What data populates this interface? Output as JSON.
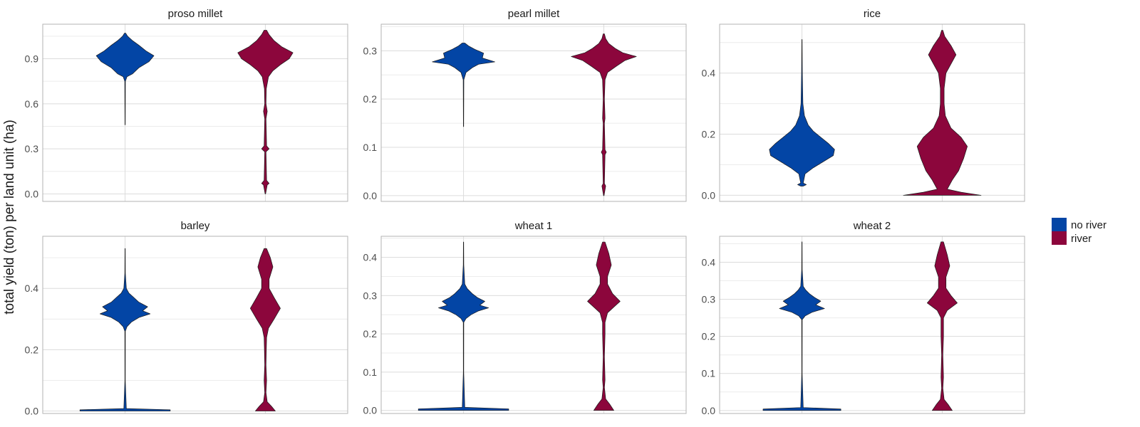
{
  "chart_data": {
    "type": "violin",
    "ylabel": "total yield (ton) per land unit (ha)",
    "legend": {
      "placement": "right",
      "entries": [
        {
          "label": "no river",
          "color": "#0345a5"
        },
        {
          "label": "river",
          "color": "#8c063c"
        }
      ]
    },
    "groups": [
      "no river",
      "river"
    ],
    "colors": {
      "no river": "#0345a5",
      "river": "#8c063c"
    },
    "grid": true,
    "panels": [
      {
        "title": "proso millet",
        "ylim": [
          -0.05,
          1.13
        ],
        "yticks": [
          0.0,
          0.3,
          0.6,
          0.9
        ],
        "tick_labels": [
          "0.0",
          "0.3",
          "0.6",
          "0.9"
        ],
        "violins": [
          {
            "group": "no river",
            "profile": [
              [
                0.46,
                0.002
              ],
              [
                0.75,
                0.005
              ],
              [
                0.78,
                0.03
              ],
              [
                0.8,
                0.12
              ],
              [
                0.84,
                0.22
              ],
              [
                0.88,
                0.38
              ],
              [
                0.92,
                0.46
              ],
              [
                0.95,
                0.34
              ],
              [
                0.99,
                0.22
              ],
              [
                1.02,
                0.12
              ],
              [
                1.05,
                0.04
              ],
              [
                1.07,
                0.01
              ]
            ]
          },
          {
            "group": "river",
            "profile": [
              [
                0.0,
                0.004
              ],
              [
                0.06,
                0.03
              ],
              [
                0.07,
                0.06
              ],
              [
                0.09,
                0.02
              ],
              [
                0.28,
                0.01
              ],
              [
                0.3,
                0.06
              ],
              [
                0.32,
                0.02
              ],
              [
                0.5,
                0.01
              ],
              [
                0.55,
                0.03
              ],
              [
                0.6,
                0.01
              ],
              [
                0.7,
                0.015
              ],
              [
                0.78,
                0.05
              ],
              [
                0.82,
                0.12
              ],
              [
                0.86,
                0.24
              ],
              [
                0.9,
                0.38
              ],
              [
                0.94,
                0.44
              ],
              [
                0.98,
                0.26
              ],
              [
                1.02,
                0.14
              ],
              [
                1.06,
                0.06
              ],
              [
                1.09,
                0.02
              ]
            ]
          }
        ]
      },
      {
        "title": "pearl millet",
        "ylim": [
          -0.012,
          0.355
        ],
        "yticks": [
          0.0,
          0.1,
          0.2,
          0.3
        ],
        "tick_labels": [
          "0.0",
          "0.1",
          "0.2",
          "0.3"
        ],
        "violins": [
          {
            "group": "no river",
            "profile": [
              [
                0.143,
                0.002
              ],
              [
                0.24,
                0.005
              ],
              [
                0.255,
                0.04
              ],
              [
                0.265,
                0.14
              ],
              [
                0.272,
                0.24
              ],
              [
                0.277,
                0.5
              ],
              [
                0.285,
                0.3
              ],
              [
                0.295,
                0.32
              ],
              [
                0.303,
                0.18
              ],
              [
                0.31,
                0.08
              ],
              [
                0.316,
                0.02
              ]
            ]
          },
          {
            "group": "river",
            "profile": [
              [
                0.0,
                0.004
              ],
              [
                0.02,
                0.03
              ],
              [
                0.025,
                0.01
              ],
              [
                0.085,
                0.02
              ],
              [
                0.09,
                0.04
              ],
              [
                0.095,
                0.02
              ],
              [
                0.15,
                0.01
              ],
              [
                0.16,
                0.02
              ],
              [
                0.2,
                0.01
              ],
              [
                0.24,
                0.02
              ],
              [
                0.255,
                0.06
              ],
              [
                0.268,
                0.2
              ],
              [
                0.28,
                0.34
              ],
              [
                0.288,
                0.52
              ],
              [
                0.296,
                0.3
              ],
              [
                0.305,
                0.18
              ],
              [
                0.315,
                0.08
              ],
              [
                0.325,
                0.03
              ],
              [
                0.335,
                0.01
              ]
            ]
          }
        ]
      },
      {
        "title": "rice",
        "ylim": [
          -0.02,
          0.56
        ],
        "yticks": [
          0.0,
          0.2,
          0.4
        ],
        "tick_labels": [
          "0.0",
          "0.2",
          "0.4"
        ],
        "violins": [
          {
            "group": "no river",
            "profile": [
              [
                0.03,
                0.02
              ],
              [
                0.035,
                0.07
              ],
              [
                0.04,
                0.02
              ],
              [
                0.07,
                0.05
              ],
              [
                0.09,
                0.18
              ],
              [
                0.11,
                0.34
              ],
              [
                0.13,
                0.5
              ],
              [
                0.15,
                0.52
              ],
              [
                0.17,
                0.42
              ],
              [
                0.19,
                0.3
              ],
              [
                0.21,
                0.18
              ],
              [
                0.23,
                0.1
              ],
              [
                0.26,
                0.04
              ],
              [
                0.3,
                0.015
              ],
              [
                0.4,
                0.006
              ],
              [
                0.51,
                0.002
              ]
            ]
          },
          {
            "group": "river",
            "profile": [
              [
                0.0,
                0.62
              ],
              [
                0.01,
                0.3
              ],
              [
                0.02,
                0.08
              ],
              [
                0.05,
                0.16
              ],
              [
                0.08,
                0.26
              ],
              [
                0.12,
                0.34
              ],
              [
                0.16,
                0.4
              ],
              [
                0.19,
                0.3
              ],
              [
                0.22,
                0.14
              ],
              [
                0.26,
                0.05
              ],
              [
                0.3,
                0.03
              ],
              [
                0.35,
                0.03
              ],
              [
                0.4,
                0.06
              ],
              [
                0.43,
                0.14
              ],
              [
                0.46,
                0.22
              ],
              [
                0.49,
                0.14
              ],
              [
                0.52,
                0.04
              ],
              [
                0.54,
                0.01
              ]
            ]
          }
        ]
      },
      {
        "title": "barley",
        "ylim": [
          -0.008,
          0.57
        ],
        "yticks": [
          0.0,
          0.2,
          0.4
        ],
        "tick_labels": [
          "0.0",
          "0.2",
          "0.4"
        ],
        "violins": [
          {
            "group": "no river",
            "profile": [
              [
                0.0,
                0.72
              ],
              [
                0.004,
                0.72
              ],
              [
                0.008,
                0.02
              ],
              [
                0.1,
                0.003
              ],
              [
                0.26,
                0.004
              ],
              [
                0.275,
                0.03
              ],
              [
                0.29,
                0.1
              ],
              [
                0.305,
                0.22
              ],
              [
                0.317,
                0.4
              ],
              [
                0.327,
                0.28
              ],
              [
                0.34,
                0.36
              ],
              [
                0.355,
                0.22
              ],
              [
                0.37,
                0.14
              ],
              [
                0.385,
                0.06
              ],
              [
                0.4,
                0.02
              ],
              [
                0.45,
                0.004
              ],
              [
                0.53,
                0.002
              ]
            ]
          },
          {
            "group": "river",
            "profile": [
              [
                0.0,
                0.16
              ],
              [
                0.015,
                0.1
              ],
              [
                0.03,
                0.03
              ],
              [
                0.06,
                0.01
              ],
              [
                0.1,
                0.02
              ],
              [
                0.15,
                0.01
              ],
              [
                0.2,
                0.015
              ],
              [
                0.24,
                0.02
              ],
              [
                0.27,
                0.05
              ],
              [
                0.3,
                0.14
              ],
              [
                0.335,
                0.24
              ],
              [
                0.37,
                0.14
              ],
              [
                0.4,
                0.06
              ],
              [
                0.43,
                0.06
              ],
              [
                0.47,
                0.12
              ],
              [
                0.5,
                0.08
              ],
              [
                0.53,
                0.02
              ]
            ]
          }
        ]
      },
      {
        "title": "wheat 1",
        "ylim": [
          -0.008,
          0.455
        ],
        "yticks": [
          0.0,
          0.1,
          0.2,
          0.3,
          0.4
        ],
        "tick_labels": [
          "0.0",
          "0.1",
          "0.2",
          "0.3",
          "0.4"
        ],
        "violins": [
          {
            "group": "no river",
            "profile": [
              [
                0.0,
                0.72
              ],
              [
                0.004,
                0.72
              ],
              [
                0.008,
                0.02
              ],
              [
                0.1,
                0.003
              ],
              [
                0.23,
                0.004
              ],
              [
                0.24,
                0.04
              ],
              [
                0.25,
                0.12
              ],
              [
                0.26,
                0.24
              ],
              [
                0.268,
                0.4
              ],
              [
                0.275,
                0.26
              ],
              [
                0.285,
                0.34
              ],
              [
                0.295,
                0.22
              ],
              [
                0.305,
                0.14
              ],
              [
                0.318,
                0.06
              ],
              [
                0.33,
                0.02
              ],
              [
                0.38,
                0.004
              ],
              [
                0.44,
                0.002
              ]
            ]
          },
          {
            "group": "river",
            "profile": [
              [
                0.0,
                0.16
              ],
              [
                0.015,
                0.1
              ],
              [
                0.03,
                0.03
              ],
              [
                0.06,
                0.01
              ],
              [
                0.08,
                0.02
              ],
              [
                0.14,
                0.01
              ],
              [
                0.2,
                0.02
              ],
              [
                0.23,
                0.02
              ],
              [
                0.255,
                0.06
              ],
              [
                0.27,
                0.16
              ],
              [
                0.285,
                0.26
              ],
              [
                0.305,
                0.14
              ],
              [
                0.33,
                0.06
              ],
              [
                0.35,
                0.06
              ],
              [
                0.38,
                0.12
              ],
              [
                0.41,
                0.08
              ],
              [
                0.44,
                0.02
              ]
            ]
          }
        ]
      },
      {
        "title": "wheat 2",
        "ylim": [
          -0.008,
          0.47
        ],
        "yticks": [
          0.0,
          0.1,
          0.2,
          0.3,
          0.4
        ],
        "tick_labels": [
          "0.0",
          "0.1",
          "0.2",
          "0.3",
          "0.4"
        ],
        "violins": [
          {
            "group": "no river",
            "profile": [
              [
                0.0,
                0.62
              ],
              [
                0.004,
                0.62
              ],
              [
                0.008,
                0.02
              ],
              [
                0.1,
                0.003
              ],
              [
                0.245,
                0.004
              ],
              [
                0.255,
                0.05
              ],
              [
                0.265,
                0.16
              ],
              [
                0.275,
                0.36
              ],
              [
                0.285,
                0.22
              ],
              [
                0.295,
                0.3
              ],
              [
                0.305,
                0.2
              ],
              [
                0.315,
                0.12
              ],
              [
                0.325,
                0.06
              ],
              [
                0.335,
                0.02
              ],
              [
                0.38,
                0.004
              ],
              [
                0.455,
                0.002
              ]
            ]
          },
          {
            "group": "river",
            "profile": [
              [
                0.0,
                0.16
              ],
              [
                0.015,
                0.1
              ],
              [
                0.03,
                0.03
              ],
              [
                0.06,
                0.01
              ],
              [
                0.09,
                0.02
              ],
              [
                0.15,
                0.01
              ],
              [
                0.2,
                0.02
              ],
              [
                0.25,
                0.02
              ],
              [
                0.27,
                0.08
              ],
              [
                0.29,
                0.24
              ],
              [
                0.31,
                0.14
              ],
              [
                0.33,
                0.06
              ],
              [
                0.36,
                0.06
              ],
              [
                0.39,
                0.12
              ],
              [
                0.42,
                0.08
              ],
              [
                0.455,
                0.02
              ]
            ]
          }
        ]
      }
    ]
  }
}
